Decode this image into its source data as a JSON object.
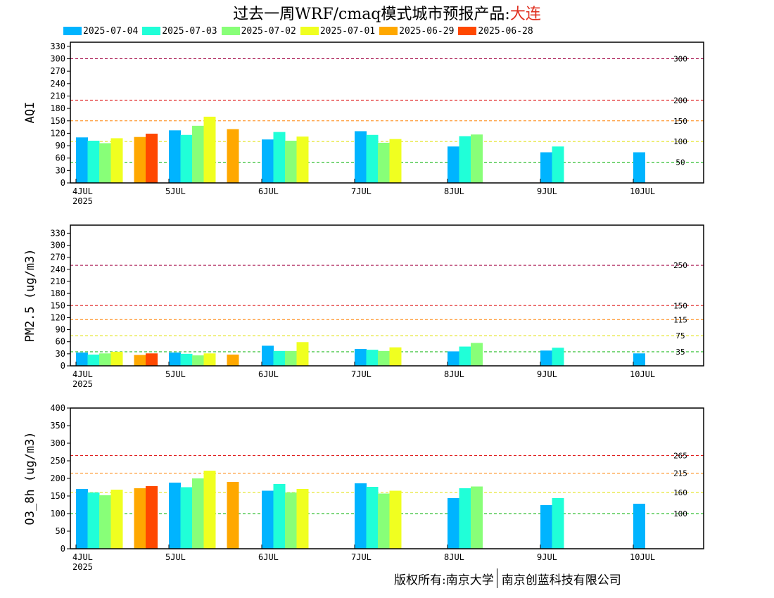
{
  "title": {
    "main": "过去一周WRF/cmaq模式城市预报产品:",
    "city": "大连"
  },
  "legend": [
    {
      "label": "2025-07-04",
      "color": "#00b4ff"
    },
    {
      "label": "2025-07-03",
      "color": "#20ffd8"
    },
    {
      "label": "2025-07-02",
      "color": "#88ff78"
    },
    {
      "label": "2025-07-01",
      "color": "#f0ff20"
    },
    {
      "label": "2025-06-29",
      "color": "#ffa800"
    },
    {
      "label": "2025-06-28",
      "color": "#ff4800"
    }
  ],
  "footer": {
    "left": "版权所有:南京大学",
    "right": "南京创蓝科技有限公司"
  },
  "chart_data": [
    {
      "type": "bar",
      "ylabel": "AQI",
      "ylim": [
        0,
        340
      ],
      "yticks": [
        0,
        30,
        60,
        90,
        120,
        150,
        180,
        210,
        240,
        270,
        300,
        330
      ],
      "x_labels": [
        "4JUL",
        "5JUL",
        "6JUL",
        "7JUL",
        "8JUL",
        "9JUL",
        "10JUL"
      ],
      "x_sub_label": "2025",
      "thresholds": [
        {
          "value": 300,
          "label": "300",
          "color": "#a00040"
        },
        {
          "value": 200,
          "label": "200",
          "color": "#e02020"
        },
        {
          "value": 150,
          "label": "150",
          "color": "#ff8000"
        },
        {
          "value": 100,
          "label": "100",
          "color": "#e0e000"
        },
        {
          "value": 50,
          "label": "50",
          "color": "#00b000"
        }
      ],
      "bars": [
        {
          "day": 0,
          "slot": 0,
          "series": 0,
          "value": 110
        },
        {
          "day": 0,
          "slot": 1,
          "series": 1,
          "value": 102
        },
        {
          "day": 0,
          "slot": 2,
          "series": 2,
          "value": 96
        },
        {
          "day": 0,
          "slot": 3,
          "series": 3,
          "value": 108
        },
        {
          "day": 0,
          "slot": 5,
          "series": 4,
          "value": 111
        },
        {
          "day": 0,
          "slot": 6,
          "series": 5,
          "value": 119
        },
        {
          "day": 1,
          "slot": 0,
          "series": 0,
          "value": 127
        },
        {
          "day": 1,
          "slot": 1,
          "series": 1,
          "value": 116
        },
        {
          "day": 1,
          "slot": 2,
          "series": 2,
          "value": 138
        },
        {
          "day": 1,
          "slot": 3,
          "series": 3,
          "value": 160
        },
        {
          "day": 1,
          "slot": 5,
          "series": 4,
          "value": 130
        },
        {
          "day": 2,
          "slot": 0,
          "series": 0,
          "value": 105
        },
        {
          "day": 2,
          "slot": 1,
          "series": 1,
          "value": 123
        },
        {
          "day": 2,
          "slot": 2,
          "series": 2,
          "value": 102
        },
        {
          "day": 2,
          "slot": 3,
          "series": 3,
          "value": 112
        },
        {
          "day": 3,
          "slot": 0,
          "series": 0,
          "value": 125
        },
        {
          "day": 3,
          "slot": 1,
          "series": 1,
          "value": 116
        },
        {
          "day": 3,
          "slot": 2,
          "series": 2,
          "value": 97
        },
        {
          "day": 3,
          "slot": 3,
          "series": 3,
          "value": 106
        },
        {
          "day": 4,
          "slot": 0,
          "series": 0,
          "value": 88
        },
        {
          "day": 4,
          "slot": 1,
          "series": 1,
          "value": 113
        },
        {
          "day": 4,
          "slot": 2,
          "series": 2,
          "value": 117
        },
        {
          "day": 5,
          "slot": 0,
          "series": 0,
          "value": 74
        },
        {
          "day": 5,
          "slot": 1,
          "series": 1,
          "value": 88
        },
        {
          "day": 6,
          "slot": 0,
          "series": 0,
          "value": 74
        }
      ]
    },
    {
      "type": "bar",
      "ylabel": "PM2.5 (ug/m3)",
      "ylim": [
        0,
        350
      ],
      "yticks": [
        0,
        30,
        60,
        90,
        120,
        150,
        180,
        210,
        240,
        270,
        300,
        330
      ],
      "x_labels": [
        "4JUL",
        "5JUL",
        "6JUL",
        "7JUL",
        "8JUL",
        "9JUL",
        "10JUL"
      ],
      "x_sub_label": "2025",
      "thresholds": [
        {
          "value": 250,
          "label": "250",
          "color": "#a00040"
        },
        {
          "value": 150,
          "label": "150",
          "color": "#e02020"
        },
        {
          "value": 115,
          "label": "115",
          "color": "#ff8000"
        },
        {
          "value": 75,
          "label": "75",
          "color": "#e0e000"
        },
        {
          "value": 35,
          "label": "35",
          "color": "#00b000"
        }
      ],
      "bars": [
        {
          "day": 0,
          "slot": 0,
          "series": 0,
          "value": 33
        },
        {
          "day": 0,
          "slot": 1,
          "series": 1,
          "value": 28
        },
        {
          "day": 0,
          "slot": 2,
          "series": 2,
          "value": 31
        },
        {
          "day": 0,
          "slot": 3,
          "series": 3,
          "value": 35
        },
        {
          "day": 0,
          "slot": 5,
          "series": 4,
          "value": 27
        },
        {
          "day": 0,
          "slot": 6,
          "series": 5,
          "value": 31
        },
        {
          "day": 1,
          "slot": 0,
          "series": 0,
          "value": 33
        },
        {
          "day": 1,
          "slot": 1,
          "series": 1,
          "value": 30
        },
        {
          "day": 1,
          "slot": 2,
          "series": 2,
          "value": 26
        },
        {
          "day": 1,
          "slot": 3,
          "series": 3,
          "value": 31
        },
        {
          "day": 1,
          "slot": 5,
          "series": 4,
          "value": 28
        },
        {
          "day": 2,
          "slot": 0,
          "series": 0,
          "value": 50
        },
        {
          "day": 2,
          "slot": 1,
          "series": 1,
          "value": 37
        },
        {
          "day": 2,
          "slot": 2,
          "series": 2,
          "value": 37
        },
        {
          "day": 2,
          "slot": 3,
          "series": 3,
          "value": 59
        },
        {
          "day": 3,
          "slot": 0,
          "series": 0,
          "value": 42
        },
        {
          "day": 3,
          "slot": 1,
          "series": 1,
          "value": 40
        },
        {
          "day": 3,
          "slot": 2,
          "series": 2,
          "value": 37
        },
        {
          "day": 3,
          "slot": 3,
          "series": 3,
          "value": 46
        },
        {
          "day": 4,
          "slot": 0,
          "series": 0,
          "value": 36
        },
        {
          "day": 4,
          "slot": 1,
          "series": 1,
          "value": 48
        },
        {
          "day": 4,
          "slot": 2,
          "series": 2,
          "value": 57
        },
        {
          "day": 5,
          "slot": 0,
          "series": 0,
          "value": 38
        },
        {
          "day": 5,
          "slot": 1,
          "series": 1,
          "value": 45
        },
        {
          "day": 6,
          "slot": 0,
          "series": 0,
          "value": 31
        }
      ]
    },
    {
      "type": "bar",
      "ylabel": "O3_8h (ug/m3)",
      "ylim": [
        0,
        400
      ],
      "yticks": [
        0,
        50,
        100,
        150,
        200,
        250,
        300,
        350,
        400
      ],
      "x_labels": [
        "4JUL",
        "5JUL",
        "6JUL",
        "7JUL",
        "8JUL",
        "9JUL",
        "10JUL"
      ],
      "x_sub_label": "2025",
      "thresholds": [
        {
          "value": 265,
          "label": "265",
          "color": "#e02020"
        },
        {
          "value": 215,
          "label": "215",
          "color": "#ff8000"
        },
        {
          "value": 160,
          "label": "160",
          "color": "#e0e000"
        },
        {
          "value": 100,
          "label": "100",
          "color": "#00b000"
        }
      ],
      "bars": [
        {
          "day": 0,
          "slot": 0,
          "series": 0,
          "value": 170
        },
        {
          "day": 0,
          "slot": 1,
          "series": 1,
          "value": 160
        },
        {
          "day": 0,
          "slot": 2,
          "series": 2,
          "value": 152
        },
        {
          "day": 0,
          "slot": 3,
          "series": 3,
          "value": 168
        },
        {
          "day": 0,
          "slot": 5,
          "series": 4,
          "value": 172
        },
        {
          "day": 0,
          "slot": 6,
          "series": 5,
          "value": 178
        },
        {
          "day": 1,
          "slot": 0,
          "series": 0,
          "value": 188
        },
        {
          "day": 1,
          "slot": 1,
          "series": 1,
          "value": 175
        },
        {
          "day": 1,
          "slot": 2,
          "series": 2,
          "value": 200
        },
        {
          "day": 1,
          "slot": 3,
          "series": 3,
          "value": 222
        },
        {
          "day": 1,
          "slot": 5,
          "series": 4,
          "value": 190
        },
        {
          "day": 2,
          "slot": 0,
          "series": 0,
          "value": 165
        },
        {
          "day": 2,
          "slot": 1,
          "series": 1,
          "value": 184
        },
        {
          "day": 2,
          "slot": 2,
          "series": 2,
          "value": 160
        },
        {
          "day": 2,
          "slot": 3,
          "series": 3,
          "value": 170
        },
        {
          "day": 3,
          "slot": 0,
          "series": 0,
          "value": 186
        },
        {
          "day": 3,
          "slot": 1,
          "series": 1,
          "value": 176
        },
        {
          "day": 3,
          "slot": 2,
          "series": 2,
          "value": 157
        },
        {
          "day": 3,
          "slot": 3,
          "series": 3,
          "value": 165
        },
        {
          "day": 4,
          "slot": 0,
          "series": 0,
          "value": 144
        },
        {
          "day": 4,
          "slot": 1,
          "series": 1,
          "value": 172
        },
        {
          "day": 4,
          "slot": 2,
          "series": 2,
          "value": 177
        },
        {
          "day": 5,
          "slot": 0,
          "series": 0,
          "value": 124
        },
        {
          "day": 5,
          "slot": 1,
          "series": 1,
          "value": 144
        },
        {
          "day": 6,
          "slot": 0,
          "series": 0,
          "value": 128
        }
      ]
    }
  ]
}
